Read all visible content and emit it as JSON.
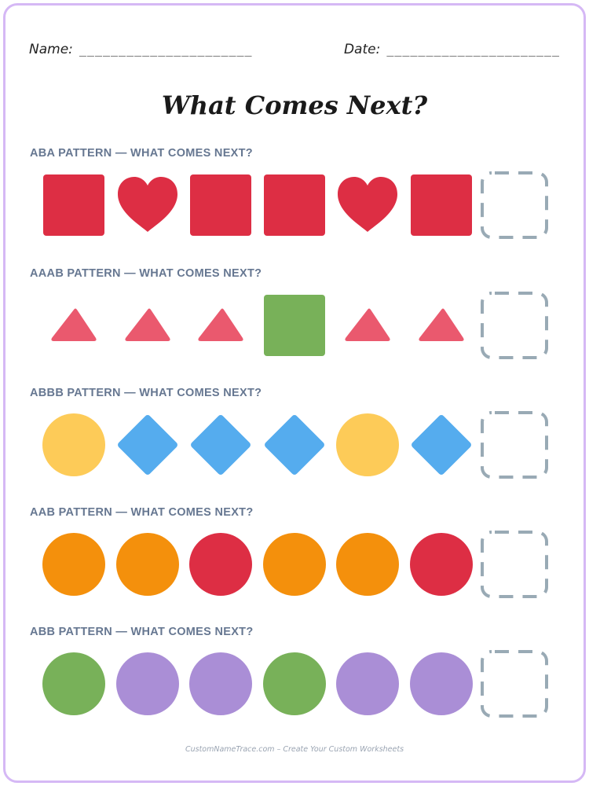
{
  "header": {
    "name_label": "Name:",
    "name_blank": "______________________",
    "date_label": "Date:",
    "date_blank": "______________________"
  },
  "title": "What Comes Next?",
  "colors": {
    "red": "#dd2e44",
    "pink": "#ea596e",
    "green": "#78b159",
    "yellow": "#fdcb58",
    "blue": "#55acee",
    "orange": "#f4900c",
    "purple": "#aa8ed6",
    "dashed": "#99aab5"
  },
  "patterns": [
    {
      "label": "ABA PATTERN — WHAT COMES NEXT?",
      "items": [
        {
          "shape": "square",
          "color": "red"
        },
        {
          "shape": "heart",
          "color": "red"
        },
        {
          "shape": "square",
          "color": "red"
        },
        {
          "shape": "square",
          "color": "red"
        },
        {
          "shape": "heart",
          "color": "red"
        },
        {
          "shape": "square",
          "color": "red"
        }
      ]
    },
    {
      "label": "AAAB PATTERN — WHAT COMES NEXT?",
      "items": [
        {
          "shape": "triangle",
          "color": "pink"
        },
        {
          "shape": "triangle",
          "color": "pink"
        },
        {
          "shape": "triangle",
          "color": "pink"
        },
        {
          "shape": "square",
          "color": "green"
        },
        {
          "shape": "triangle",
          "color": "pink"
        },
        {
          "shape": "triangle",
          "color": "pink"
        }
      ]
    },
    {
      "label": "ABBB PATTERN — WHAT COMES NEXT?",
      "items": [
        {
          "shape": "circle",
          "color": "yellow"
        },
        {
          "shape": "diamond",
          "color": "blue"
        },
        {
          "shape": "diamond",
          "color": "blue"
        },
        {
          "shape": "diamond",
          "color": "blue"
        },
        {
          "shape": "circle",
          "color": "yellow"
        },
        {
          "shape": "diamond",
          "color": "blue"
        }
      ]
    },
    {
      "label": "AAB PATTERN — WHAT COMES NEXT?",
      "items": [
        {
          "shape": "circle",
          "color": "orange"
        },
        {
          "shape": "circle",
          "color": "orange"
        },
        {
          "shape": "circle",
          "color": "red"
        },
        {
          "shape": "circle",
          "color": "orange"
        },
        {
          "shape": "circle",
          "color": "orange"
        },
        {
          "shape": "circle",
          "color": "red"
        }
      ]
    },
    {
      "label": "ABB PATTERN — WHAT COMES NEXT?",
      "items": [
        {
          "shape": "circle",
          "color": "green"
        },
        {
          "shape": "circle",
          "color": "purple"
        },
        {
          "shape": "circle",
          "color": "purple"
        },
        {
          "shape": "circle",
          "color": "green"
        },
        {
          "shape": "circle",
          "color": "purple"
        },
        {
          "shape": "circle",
          "color": "purple"
        }
      ]
    }
  ],
  "footer": "CustomNameTrace.com – Create Your Custom Worksheets"
}
